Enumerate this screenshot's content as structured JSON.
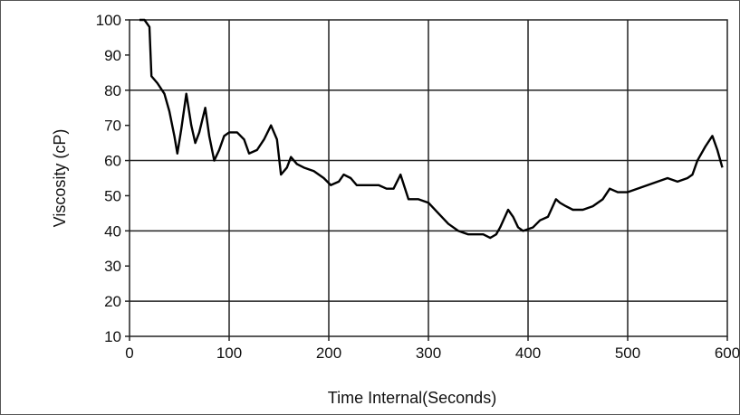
{
  "chart_data": {
    "type": "line",
    "title": "",
    "xlabel": "Time Internal(Seconds)",
    "ylabel": "Viscosity (cP)",
    "xlim": [
      0,
      600
    ],
    "ylim": [
      10,
      100
    ],
    "xticks": [
      0,
      100,
      200,
      300,
      400,
      500,
      600
    ],
    "yticks": [
      10,
      20,
      30,
      40,
      50,
      60,
      70,
      80,
      90,
      100
    ],
    "grid": true,
    "legend": "none",
    "line_color": "#000000",
    "series": [
      {
        "x": [
          10,
          15,
          20,
          22,
          28,
          35,
          40,
          45,
          48,
          52,
          57,
          62,
          66,
          70,
          76,
          80,
          85,
          90,
          95,
          100,
          108,
          115,
          120,
          128,
          135,
          142,
          148,
          152,
          158,
          162,
          168,
          175,
          185,
          195,
          202,
          210,
          215,
          222,
          228,
          238,
          250,
          258,
          265,
          272,
          280,
          290,
          300,
          310,
          320,
          330,
          340,
          348,
          355,
          362,
          368,
          372,
          380,
          385,
          390,
          395,
          405,
          412,
          420,
          428,
          432,
          438,
          445,
          455,
          465,
          475,
          482,
          490,
          500,
          510,
          520,
          530,
          540,
          550,
          560,
          565,
          570,
          578,
          585,
          590,
          595
        ],
        "y": [
          100,
          100,
          98,
          84,
          82,
          79,
          74,
          67,
          62,
          69,
          79,
          70,
          65,
          68,
          75,
          67,
          60,
          63,
          67,
          68,
          68,
          66,
          62,
          63,
          66,
          70,
          66,
          56,
          58,
          61,
          59,
          58,
          57,
          55,
          53,
          54,
          56,
          55,
          53,
          53,
          53,
          52,
          52,
          56,
          49,
          49,
          48,
          45,
          42,
          40,
          39,
          39,
          39,
          38,
          39,
          41,
          46,
          44,
          41,
          40,
          41,
          43,
          44,
          49,
          48,
          47,
          46,
          46,
          47,
          49,
          52,
          51,
          51,
          52,
          53,
          54,
          55,
          54,
          55,
          56,
          60,
          64,
          67,
          63,
          58
        ]
      }
    ]
  }
}
